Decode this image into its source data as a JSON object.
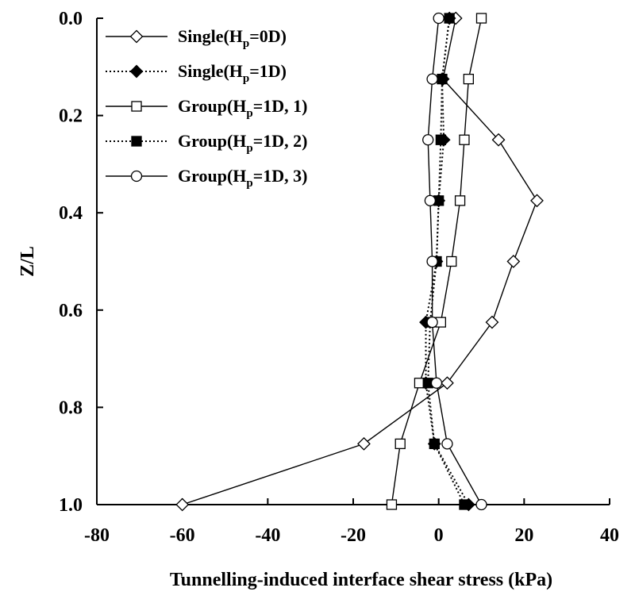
{
  "chart_data": {
    "type": "line",
    "xlabel": "Tunnelling-induced interface shear stress (kPa)",
    "ylabel": "Z/L",
    "xlim": [
      -80,
      40
    ],
    "ylim": [
      0.0,
      1.0
    ],
    "y_inverted": true,
    "x_axis_position": "top",
    "x_ticks": [
      -80,
      -60,
      -40,
      -20,
      0,
      20,
      40
    ],
    "y_ticks": [
      0.0,
      0.2,
      0.4,
      0.6,
      0.8,
      1.0
    ],
    "x_tick_labels": [
      "-80",
      "-60",
      "-40",
      "-20",
      "0",
      "20",
      "40"
    ],
    "y_tick_labels": [
      "0.0",
      "0.2",
      "0.4",
      "0.6",
      "0.8",
      "1.0"
    ],
    "grid": false,
    "legend_position": "top-left",
    "z": [
      0.0,
      0.125,
      0.25,
      0.375,
      0.5,
      0.625,
      0.75,
      0.875,
      1.0
    ],
    "series": [
      {
        "name": "Single(Hp=0D)",
        "legend_main": "Single(H",
        "legend_sub": "p",
        "legend_rest": "=0D)",
        "marker": "diamond-open",
        "line": "solid",
        "stress": [
          4,
          1,
          14,
          23,
          17.5,
          12.5,
          2,
          -17.5,
          -60
        ]
      },
      {
        "name": "Single(Hp=1D)",
        "legend_main": "Single(H",
        "legend_sub": "p",
        "legend_rest": "=1D)",
        "marker": "diamond-filled",
        "line": "dotted",
        "stress": [
          2.5,
          0.8,
          1.2,
          0,
          -0.5,
          -3,
          -3,
          -1,
          7
        ]
      },
      {
        "name": "Group(Hp=1D, 1)",
        "legend_main": "Group(H",
        "legend_sub": "p",
        "legend_rest": "=1D, 1)",
        "marker": "square-open",
        "line": "solid",
        "stress": [
          10,
          7,
          6,
          5,
          3,
          0.5,
          -4.5,
          -9,
          -11
        ]
      },
      {
        "name": "Group(Hp=1D, 2)",
        "legend_main": "Group(H",
        "legend_sub": "p",
        "legend_rest": "=1D, 2)",
        "marker": "square-filled",
        "line": "dotted",
        "stress": [
          2.5,
          0.8,
          0.5,
          0,
          -0.5,
          -2,
          -2.5,
          -1,
          6
        ]
      },
      {
        "name": "Group(Hp=1D, 3)",
        "legend_main": "Group(H",
        "legend_sub": "p",
        "legend_rest": "=1D, 3)",
        "marker": "circle-open",
        "line": "solid",
        "stress": [
          0,
          -1.5,
          -2.5,
          -2,
          -1.5,
          -1.5,
          -0.5,
          2,
          10
        ]
      }
    ]
  }
}
